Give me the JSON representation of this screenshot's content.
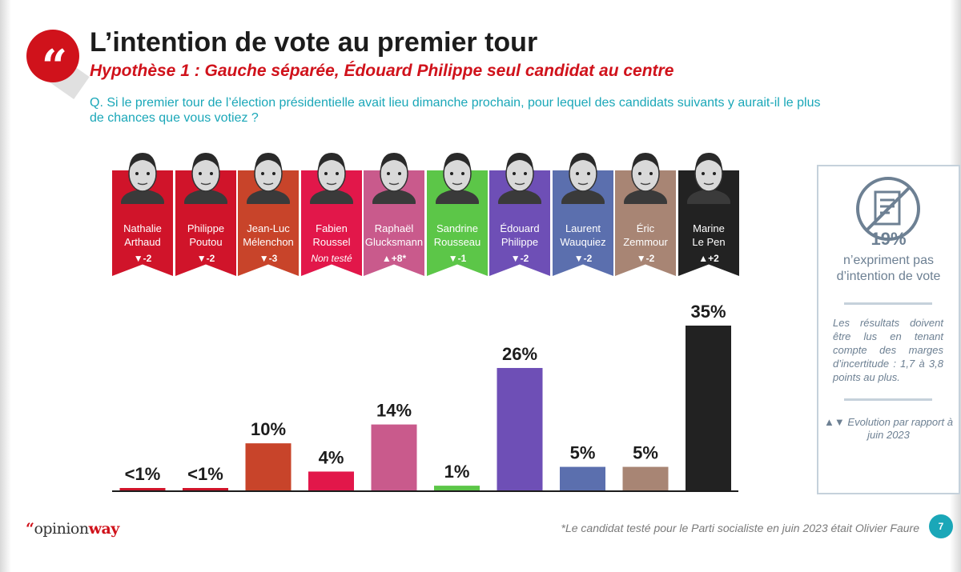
{
  "header": {
    "title": "L’intention de vote au premier tour",
    "subtitle": "Hypothèse 1 : Gauche séparée, Édouard Philippe seul candidat au centre",
    "question": "Q. Si le premier tour de l’élection présidentielle avait lieu dimanche prochain, pour lequel des candidats suivants y aurait-il le plus de chances que vous votiez ?"
  },
  "candidates": [
    {
      "first": "Nathalie",
      "last": "Arthaud",
      "evolution": "-2",
      "direction": "down",
      "color": "#d0142a"
    },
    {
      "first": "Philippe",
      "last": "Poutou",
      "evolution": "-2",
      "direction": "down",
      "color": "#d0142a"
    },
    {
      "first": "Jean-Luc",
      "last": "Mélenchon",
      "evolution": "-3",
      "direction": "down",
      "color": "#c8442a"
    },
    {
      "first": "Fabien",
      "last": "Roussel",
      "evolution": "Non testé",
      "direction": "none",
      "color": "#e2174a"
    },
    {
      "first": "Raphaël",
      "last": "Glucksmann",
      "evolution": "+8*",
      "direction": "up",
      "color": "#c95a8c"
    },
    {
      "first": "Sandrine",
      "last": "Rousseau",
      "evolution": "-1",
      "direction": "down",
      "color": "#5cc648"
    },
    {
      "first": "Édouard",
      "last": "Philippe",
      "evolution": "-2",
      "direction": "down",
      "color": "#6e4fb6"
    },
    {
      "first": "Laurent",
      "last": "Wauquiez",
      "evolution": "-2",
      "direction": "down",
      "color": "#5b6fae"
    },
    {
      "first": "Éric",
      "last": "Zemmour",
      "evolution": "-2",
      "direction": "down",
      "color": "#a88574"
    },
    {
      "first": "Marine",
      "last": "Le Pen",
      "evolution": "+2",
      "direction": "up",
      "color": "#222222"
    }
  ],
  "chart_data": {
    "type": "bar",
    "categories": [
      "Nathalie Arthaud",
      "Philippe Poutou",
      "Jean-Luc Mélenchon",
      "Fabien Roussel",
      "Raphaël Glucksmann",
      "Sandrine Rousseau",
      "Édouard Philippe",
      "Laurent Wauquiez",
      "Éric Zemmour",
      "Marine Le Pen"
    ],
    "values": [
      0.5,
      0.5,
      10,
      4,
      14,
      1,
      26,
      5,
      5,
      35
    ],
    "labels": [
      "<1%",
      "<1%",
      "10%",
      "4%",
      "14%",
      "1%",
      "26%",
      "5%",
      "5%",
      "35%"
    ],
    "colors": [
      "#d0142a",
      "#d0142a",
      "#c8442a",
      "#e2174a",
      "#c95a8c",
      "#5cc648",
      "#6e4fb6",
      "#5b6fae",
      "#a88574",
      "#222222"
    ],
    "ylim": [
      0,
      35
    ],
    "grid": false,
    "title": "",
    "xlabel": "",
    "ylabel": ""
  },
  "info": {
    "pct": "19%",
    "text": "n’expriment pas d’intention de vote",
    "note": "Les résultats doivent être lus en tenant compte des marges d’incertitude : 1,7 à 3,8 points au plus.",
    "evolution_note": "Evolution par rapport à juin 2023",
    "icon": "no-vote-icon"
  },
  "footer": {
    "logo_quote": "“",
    "logo_opinion": "opinion",
    "logo_way": "way",
    "footnote": "*Le candidat testé pour le Parti socialiste en juin 2023 était Olivier Faure",
    "page": "7"
  }
}
